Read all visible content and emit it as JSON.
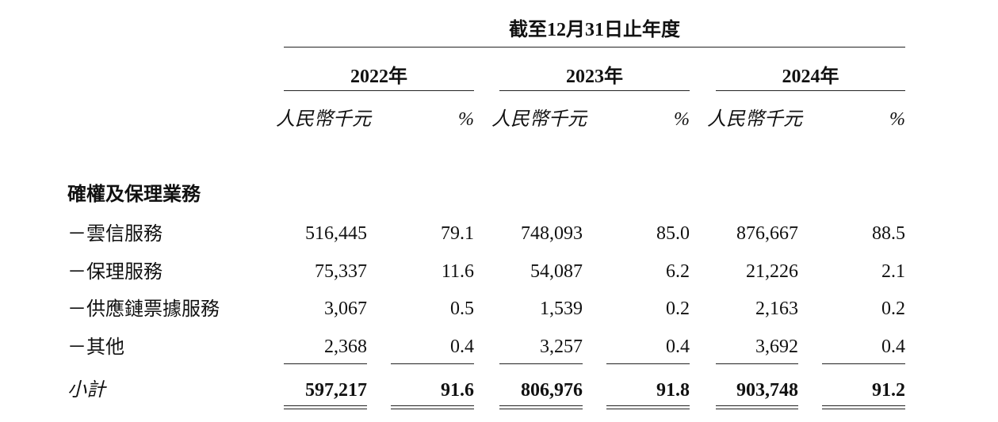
{
  "header": {
    "title": "截至12月31日止年度",
    "years": [
      "2022年",
      "2023年",
      "2024年"
    ],
    "units": [
      "人民幣千元",
      "%",
      "人民幣千元",
      "%",
      "人民幣千元",
      "%"
    ]
  },
  "table": {
    "section": "確權及保理業務",
    "rows": [
      [
        "－雲信服務",
        "516,445",
        "79.1",
        "748,093",
        "85.0",
        "876,667",
        "88.5"
      ],
      [
        "－保理服務",
        "75,337",
        "11.6",
        "54,087",
        "6.2",
        "21,226",
        "2.1"
      ],
      [
        "－供應鏈票據服務",
        "3,067",
        "0.5",
        "1,539",
        "0.2",
        "2,163",
        "0.2"
      ],
      [
        "－其他",
        "2,368",
        "0.4",
        "3,257",
        "0.4",
        "3,692",
        "0.4"
      ]
    ],
    "subtotal": [
      "小計",
      "597,217",
      "91.6",
      "806,976",
      "91.8",
      "903,748",
      "91.2"
    ]
  }
}
